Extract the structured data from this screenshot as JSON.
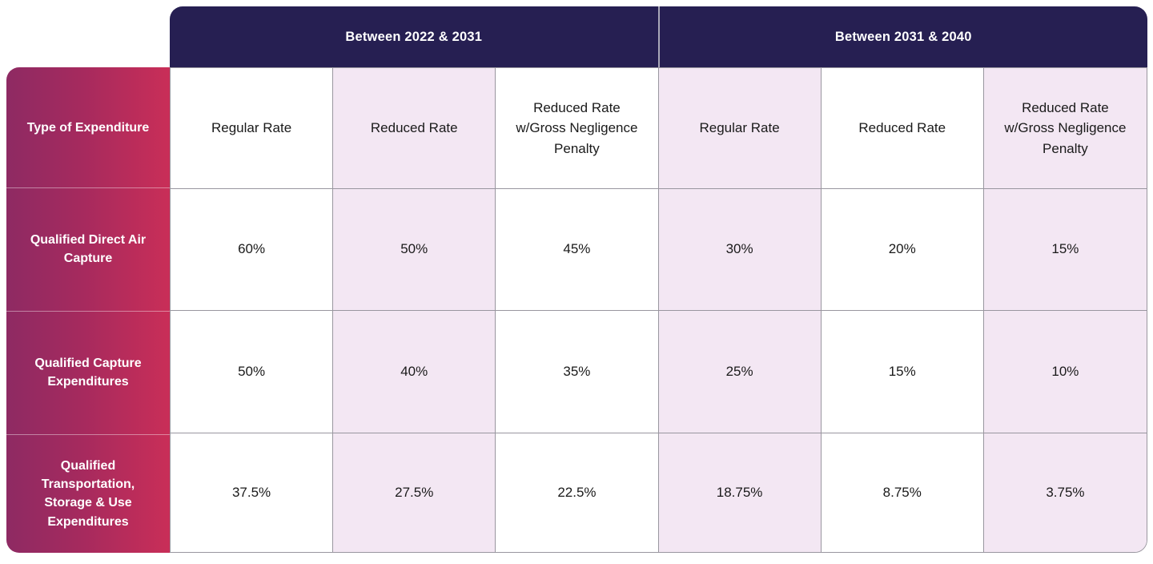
{
  "table": {
    "corner_label": "Type of Expenditure",
    "groups": [
      {
        "label": "Between 2022 & 2031"
      },
      {
        "label": "Between 2031 & 2040"
      }
    ],
    "column_headers": [
      "Regular Rate",
      "Reduced Rate",
      "Reduced Rate w/Gross Negligence Penalty",
      "Regular Rate",
      "Reduced Rate",
      "Reduced Rate w/Gross Negligence Penalty"
    ],
    "rows": [
      {
        "label": "Qualified Direct Air Capture",
        "values": [
          "60%",
          "50%",
          "45%",
          "30%",
          "20%",
          "15%"
        ]
      },
      {
        "label": "Qualified Capture Expenditures",
        "values": [
          "50%",
          "40%",
          "35%",
          "25%",
          "15%",
          "10%"
        ]
      },
      {
        "label": "Qualified Transportation, Storage & Use Expenditures",
        "values": [
          "37.5%",
          "27.5%",
          "22.5%",
          "18.75%",
          "8.75%",
          "3.75%"
        ]
      }
    ],
    "colors": {
      "group_header_bg": "#261f52",
      "row_label_gradient_start": "#8e2a63",
      "row_label_gradient_end": "#c92e58",
      "alt_cell_bg": "#f3e7f3",
      "grid_line": "#99969f",
      "header_text": "#ffffff",
      "cell_text": "#1a1a1a"
    }
  },
  "chart_data": {
    "type": "table",
    "title": "",
    "column_groups": [
      "Between 2022 & 2031",
      "Between 2031 & 2040"
    ],
    "columns": [
      "Regular Rate (2022-2031)",
      "Reduced Rate (2022-2031)",
      "Reduced Rate w/Gross Negligence Penalty (2022-2031)",
      "Regular Rate (2031-2040)",
      "Reduced Rate (2031-2040)",
      "Reduced Rate w/Gross Negligence Penalty (2031-2040)"
    ],
    "row_header": "Type of Expenditure",
    "rows": [
      {
        "name": "Qualified Direct Air Capture",
        "values_pct": [
          60,
          50,
          45,
          30,
          20,
          15
        ]
      },
      {
        "name": "Qualified Capture Expenditures",
        "values_pct": [
          50,
          40,
          35,
          25,
          15,
          10
        ]
      },
      {
        "name": "Qualified Transportation, Storage & Use Expenditures",
        "values_pct": [
          37.5,
          27.5,
          22.5,
          18.75,
          8.75,
          3.75
        ]
      }
    ]
  }
}
